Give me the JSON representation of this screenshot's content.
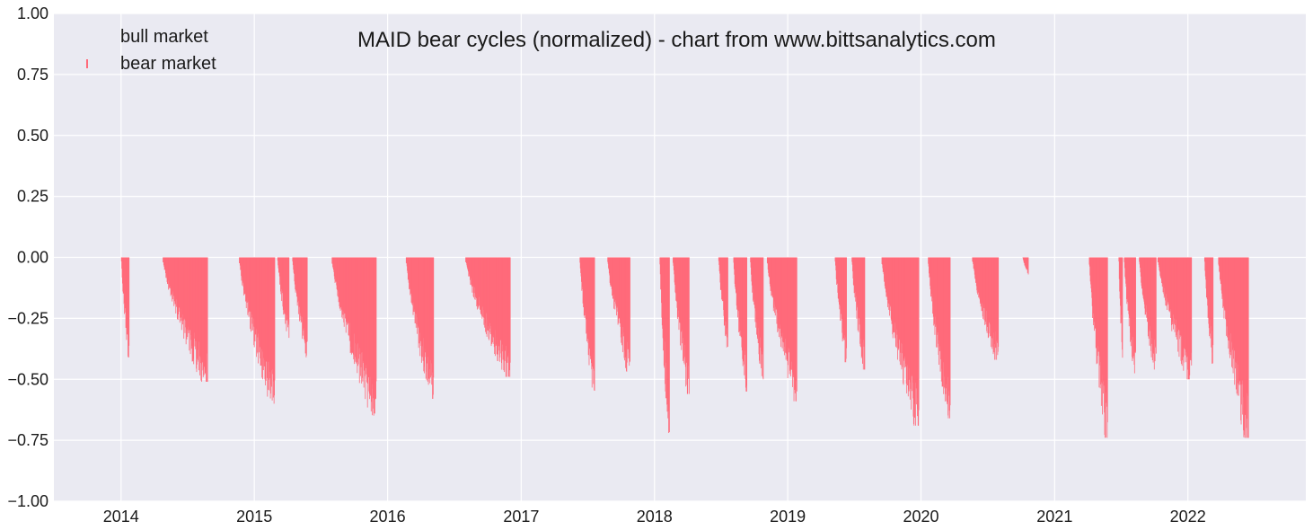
{
  "chart_data": {
    "type": "bar",
    "title": "MAID bear cycles (normalized)  - chart from www.bittsanalytics.com",
    "xlabel": "",
    "ylabel": "",
    "ylim": [
      -1.0,
      1.0
    ],
    "xlim": [
      "2013-07-01",
      "2022-11-20"
    ],
    "grid": true,
    "legend": {
      "placement": "top-left",
      "entries": [
        "bull market",
        "bear market"
      ]
    },
    "y_ticks": [
      "1.00",
      "0.75",
      "0.50",
      "0.25",
      "0.00",
      "−0.25",
      "−0.50",
      "−0.75",
      "−1.00"
    ],
    "x_ticks": [
      "2014",
      "2015",
      "2016",
      "2017",
      "2018",
      "2019",
      "2020",
      "2021",
      "2022"
    ],
    "series": [
      {
        "name": "bear market",
        "color": "#ff6a7a",
        "episodes": [
          {
            "start": "2014-01-01",
            "end": "2014-01-22",
            "min": -0.41
          },
          {
            "start": "2014-04-25",
            "end": "2014-08-25",
            "min": -0.51
          },
          {
            "start": "2014-11-20",
            "end": "2015-02-25",
            "min": -0.6
          },
          {
            "start": "2015-03-05",
            "end": "2015-04-05",
            "min": -0.33
          },
          {
            "start": "2015-04-15",
            "end": "2015-05-25",
            "min": -0.41
          },
          {
            "start": "2015-08-01",
            "end": "2015-11-30",
            "min": -0.65
          },
          {
            "start": "2016-02-20",
            "end": "2016-05-05",
            "min": -0.58
          },
          {
            "start": "2016-08-01",
            "end": "2016-12-01",
            "min": -0.49
          },
          {
            "start": "2017-06-10",
            "end": "2017-07-20",
            "min": -0.55
          },
          {
            "start": "2017-08-25",
            "end": "2017-10-25",
            "min": -0.47
          },
          {
            "start": "2018-01-15",
            "end": "2018-02-10",
            "min": -0.72
          },
          {
            "start": "2018-02-20",
            "end": "2018-04-05",
            "min": -0.56
          },
          {
            "start": "2018-06-25",
            "end": "2018-07-20",
            "min": -0.37
          },
          {
            "start": "2018-08-05",
            "end": "2018-09-10",
            "min": -0.55
          },
          {
            "start": "2018-09-20",
            "end": "2018-10-25",
            "min": -0.5
          },
          {
            "start": "2018-11-05",
            "end": "2019-01-25",
            "min": -0.59
          },
          {
            "start": "2019-05-10",
            "end": "2019-06-10",
            "min": -0.43
          },
          {
            "start": "2019-06-25",
            "end": "2019-07-30",
            "min": -0.46
          },
          {
            "start": "2019-09-15",
            "end": "2019-12-25",
            "min": -0.69
          },
          {
            "start": "2020-01-20",
            "end": "2020-03-20",
            "min": -0.66
          },
          {
            "start": "2020-05-20",
            "end": "2020-07-30",
            "min": -0.42
          },
          {
            "start": "2020-10-05",
            "end": "2020-10-20",
            "min": -0.07
          },
          {
            "start": "2021-04-05",
            "end": "2021-05-25",
            "min": -0.74
          },
          {
            "start": "2021-06-25",
            "end": "2021-07-05",
            "min": -0.42
          },
          {
            "start": "2021-07-10",
            "end": "2021-08-10",
            "min": -0.49
          },
          {
            "start": "2021-08-20",
            "end": "2021-10-05",
            "min": -0.46
          },
          {
            "start": "2021-10-10",
            "end": "2022-01-10",
            "min": -0.5
          },
          {
            "start": "2022-02-15",
            "end": "2022-03-10",
            "min": -0.44
          },
          {
            "start": "2022-03-25",
            "end": "2022-06-15",
            "min": -0.74
          }
        ]
      }
    ]
  }
}
